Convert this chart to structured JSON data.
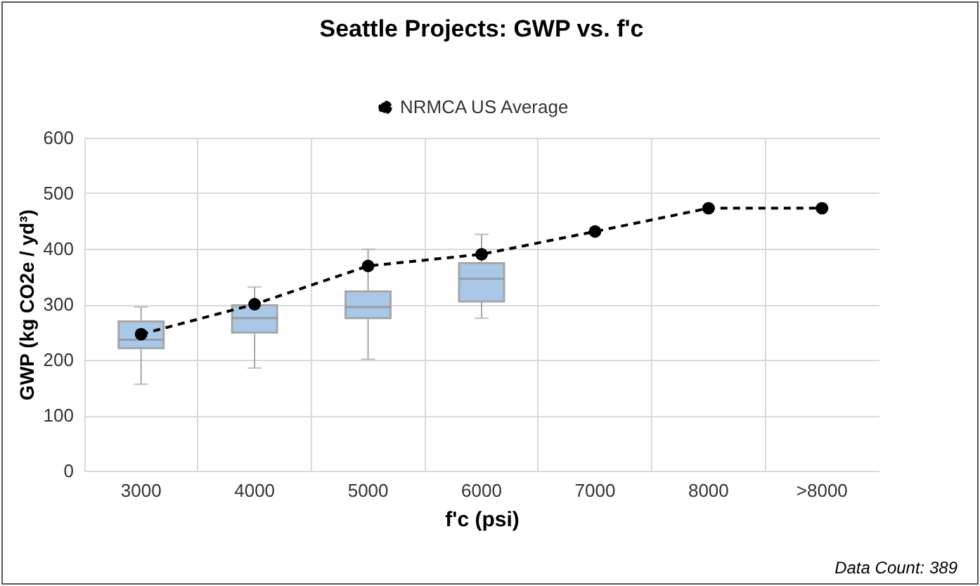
{
  "chart_data": {
    "type": "box",
    "title": "Seattle Projects: GWP vs. f'c",
    "xlabel": "f'c (psi)",
    "ylabel": "GWP (kg CO2e / yd³)",
    "annotations": [
      "Data Count: 389"
    ],
    "categories": [
      "3000",
      "4000",
      "5000",
      "6000",
      "7000",
      "8000",
      ">8000"
    ],
    "ylim": [
      0,
      600
    ],
    "yticks": [
      0,
      100,
      200,
      300,
      400,
      500,
      600
    ],
    "grid": true,
    "legend": "top",
    "marker": "circle",
    "line_style": "dashed",
    "series": [
      {
        "color": "#a9c8e8",
        "boxes": [
          {
            "low": 156,
            "q1": 221,
            "median": 236,
            "q3": 269,
            "high": 295
          },
          {
            "low": 185,
            "q1": 249,
            "median": 275,
            "q3": 298,
            "high": 331
          },
          {
            "low": 201,
            "q1": 275,
            "median": 295,
            "q3": 323,
            "high": 399
          },
          {
            "low": 275,
            "q1": 305,
            "median": 346,
            "q3": 374,
            "high": 426
          },
          null,
          null,
          null
        ]
      },
      {
        "type": "line",
        "name": "NRMCA US Average",
        "color": "#000000",
        "values": [
          246,
          300,
          369,
          390,
          431,
          473,
          473
        ]
      }
    ]
  }
}
